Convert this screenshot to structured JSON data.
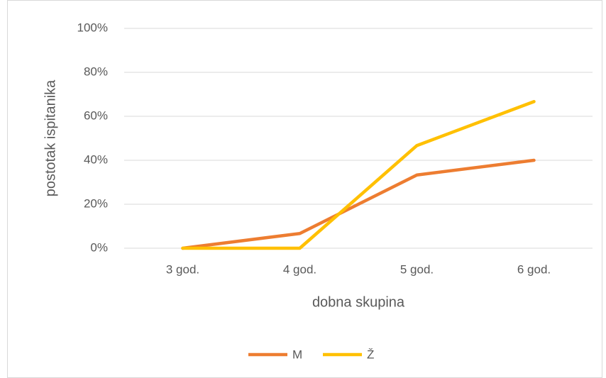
{
  "chart_data": {
    "type": "line",
    "categories": [
      "3 god.",
      "4 god.",
      "5 god.",
      "6 god."
    ],
    "series": [
      {
        "name": "M",
        "color": "#ed7d31",
        "values": [
          0,
          6.7,
          33.3,
          40
        ]
      },
      {
        "name": "Ž",
        "color": "#ffc000",
        "values": [
          0,
          0,
          46.7,
          66.7
        ]
      }
    ],
    "ylim": [
      0,
      100
    ],
    "yticks": [
      {
        "value": 0,
        "label": "0%"
      },
      {
        "value": 20,
        "label": "20%"
      },
      {
        "value": 40,
        "label": "40%"
      },
      {
        "value": 60,
        "label": "60%"
      },
      {
        "value": 80,
        "label": "80%"
      },
      {
        "value": 100,
        "label": "100%"
      }
    ],
    "y_label": "postotak ispitanika",
    "x_label": "dobna skupina",
    "grid": true,
    "legend": "bottom"
  }
}
